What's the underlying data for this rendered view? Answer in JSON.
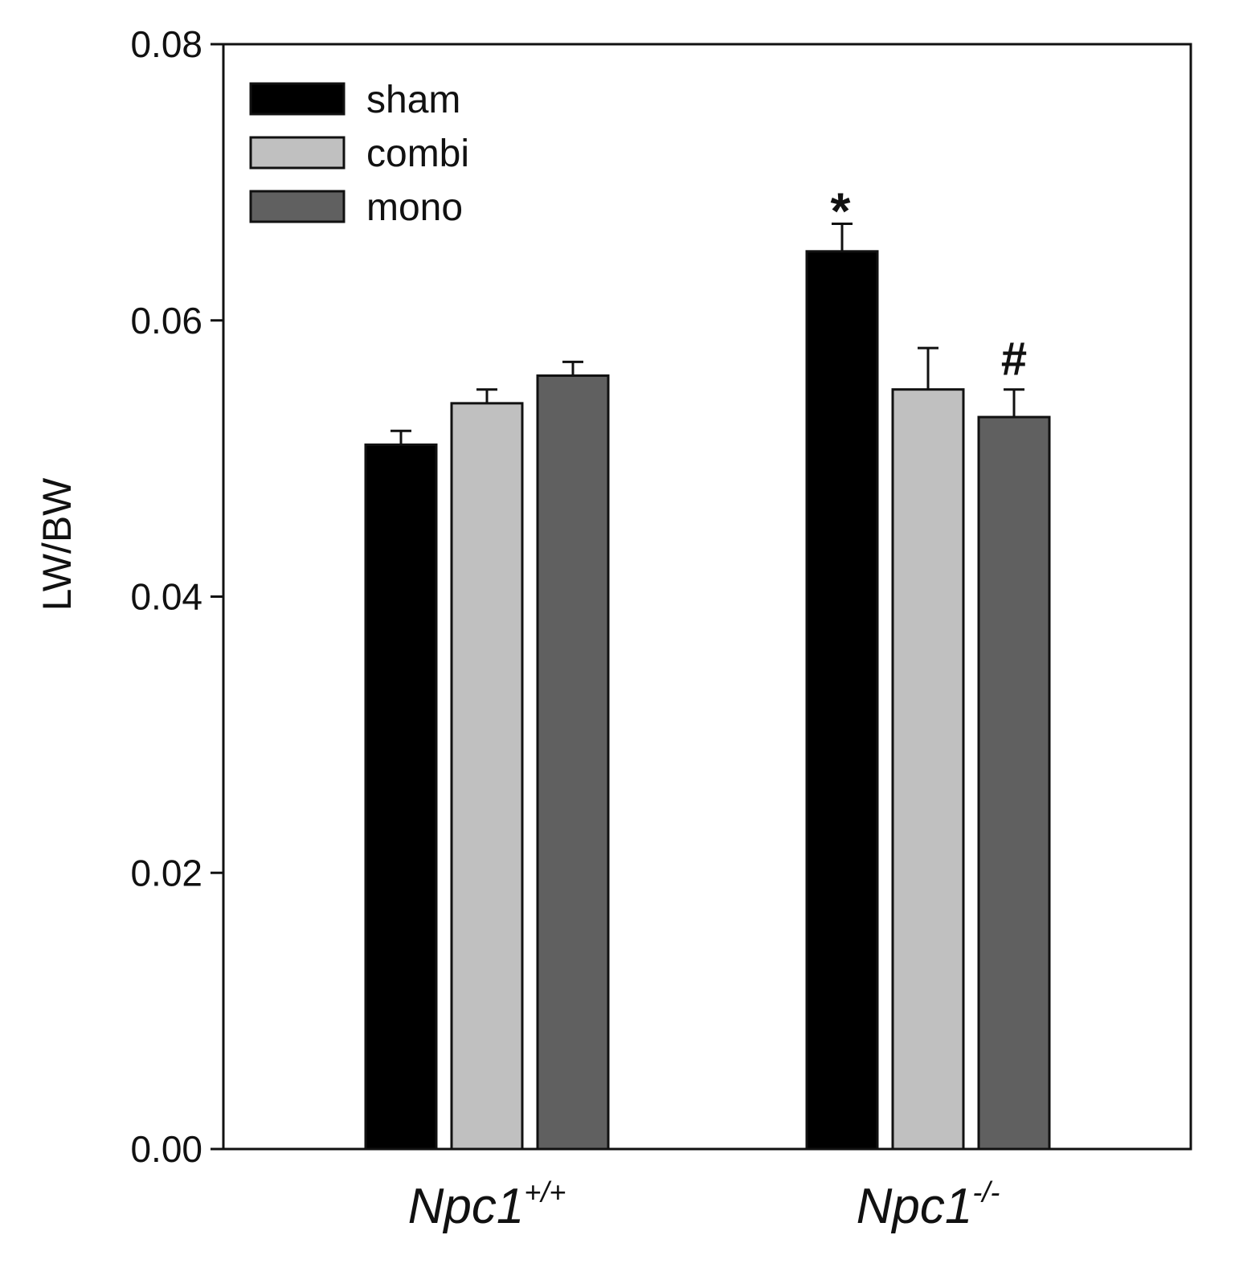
{
  "chart_data": {
    "type": "bar",
    "title": "",
    "xlabel": "",
    "ylabel": "LW/BW",
    "ylim": [
      0,
      0.08
    ],
    "yticks": [
      "0.00",
      "0.02",
      "0.04",
      "0.06",
      "0.08"
    ],
    "grid": false,
    "legend_position": "top-left",
    "categories": [
      {
        "base": "Npc1",
        "sup": "+/+"
      },
      {
        "base": "Npc1",
        "sup": "-/-"
      }
    ],
    "series": [
      {
        "name": "sham",
        "color": "#000000",
        "values": [
          0.051,
          0.065
        ],
        "errors": [
          0.001,
          0.002
        ]
      },
      {
        "name": "combi",
        "color": "#c0c0c0",
        "values": [
          0.054,
          0.055
        ],
        "errors": [
          0.001,
          0.003
        ]
      },
      {
        "name": "mono",
        "color": "#606060",
        "values": [
          0.056,
          0.053
        ],
        "errors": [
          0.001,
          0.002
        ]
      }
    ],
    "annotations": [
      {
        "text": "*",
        "category": 1,
        "series": 0
      },
      {
        "text": "#",
        "category": 1,
        "series": 2
      }
    ]
  }
}
